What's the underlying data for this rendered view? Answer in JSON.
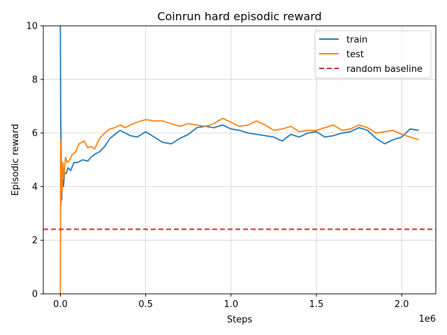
{
  "chart_data": {
    "type": "line",
    "title": "Coinrun hard episodic reward",
    "xlabel": "Steps",
    "ylabel": "Episodic reward",
    "x_offset_label": "1e6",
    "xlim": [
      -100000,
      2200000
    ],
    "ylim": [
      0,
      10
    ],
    "x_ticks": [
      0,
      500000,
      1000000,
      1500000,
      2000000
    ],
    "x_tick_labels": [
      "0.0",
      "0.5",
      "1.0",
      "1.5",
      "2.0"
    ],
    "y_ticks": [
      0,
      2,
      4,
      6,
      8,
      10
    ],
    "y_tick_labels": [
      "0",
      "2",
      "4",
      "6",
      "8",
      "10"
    ],
    "grid": true,
    "legend_position": "top-right",
    "series": [
      {
        "name": "train",
        "color": "#1f77b4",
        "style": "solid",
        "x": [
          0,
          2000,
          5000,
          8000,
          12000,
          18000,
          25000,
          35000,
          45000,
          60000,
          80000,
          100000,
          130000,
          160000,
          180000,
          200000,
          230000,
          260000,
          290000,
          320000,
          350000,
          380000,
          410000,
          450000,
          500000,
          550000,
          600000,
          650000,
          700000,
          750000,
          800000,
          850000,
          900000,
          950000,
          1000000,
          1050000,
          1100000,
          1150000,
          1200000,
          1250000,
          1300000,
          1350000,
          1400000,
          1450000,
          1500000,
          1550000,
          1600000,
          1650000,
          1700000,
          1750000,
          1800000,
          1850000,
          1900000,
          1950000,
          2000000,
          2050000,
          2100000
        ],
        "y": [
          10.0,
          6.7,
          5.0,
          3.5,
          4.7,
          4.0,
          4.5,
          4.5,
          4.7,
          4.6,
          4.9,
          4.9,
          5.0,
          4.95,
          5.1,
          5.2,
          5.3,
          5.5,
          5.8,
          5.95,
          6.1,
          6.0,
          5.9,
          5.85,
          6.05,
          5.85,
          5.65,
          5.6,
          5.8,
          5.95,
          6.2,
          6.25,
          6.2,
          6.3,
          6.15,
          6.1,
          6.0,
          5.95,
          5.9,
          5.85,
          5.7,
          5.95,
          5.85,
          6.0,
          6.05,
          5.85,
          5.9,
          6.0,
          6.05,
          6.2,
          6.1,
          5.8,
          5.6,
          5.75,
          5.85,
          6.15,
          6.1
        ]
      },
      {
        "name": "test",
        "color": "#ff7f0e",
        "style": "solid",
        "x": [
          0,
          2000,
          4000,
          7000,
          10000,
          15000,
          20000,
          30000,
          40000,
          55000,
          70000,
          90000,
          110000,
          140000,
          160000,
          180000,
          200000,
          230000,
          260000,
          290000,
          320000,
          350000,
          380000,
          410000,
          450000,
          500000,
          550000,
          600000,
          650000,
          700000,
          750000,
          800000,
          850000,
          900000,
          950000,
          1000000,
          1050000,
          1100000,
          1150000,
          1200000,
          1250000,
          1300000,
          1350000,
          1400000,
          1450000,
          1500000,
          1550000,
          1600000,
          1650000,
          1700000,
          1750000,
          1800000,
          1850000,
          1900000,
          1950000,
          2000000,
          2050000,
          2100000
        ],
        "y": [
          0.0,
          5.7,
          3.3,
          4.8,
          3.8,
          4.9,
          4.3,
          5.1,
          4.9,
          5.0,
          5.2,
          5.3,
          5.6,
          5.7,
          5.45,
          5.5,
          5.4,
          5.8,
          6.0,
          6.15,
          6.2,
          6.3,
          6.2,
          6.3,
          6.4,
          6.5,
          6.45,
          6.45,
          6.35,
          6.25,
          6.35,
          6.3,
          6.25,
          6.35,
          6.55,
          6.4,
          6.25,
          6.3,
          6.45,
          6.3,
          6.1,
          6.15,
          6.25,
          6.05,
          6.1,
          6.1,
          6.2,
          6.3,
          6.1,
          6.15,
          6.3,
          6.2,
          6.0,
          6.05,
          6.1,
          5.95,
          5.85,
          5.75
        ]
      },
      {
        "name": "random baseline",
        "color": "#d62728",
        "style": "dashed",
        "x": [
          -100000,
          2200000
        ],
        "y": [
          2.41,
          2.41
        ]
      }
    ]
  }
}
